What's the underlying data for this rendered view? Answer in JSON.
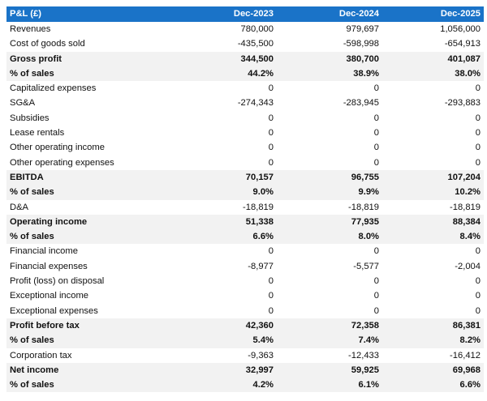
{
  "table": {
    "header": {
      "label": "P&L (£)",
      "years": [
        "Dec-2023",
        "Dec-2024",
        "Dec-2025"
      ]
    },
    "rows": [
      {
        "label": "Revenues",
        "values": [
          "780,000",
          "979,697",
          "1,056,000"
        ],
        "bold": false
      },
      {
        "label": "Cost of goods sold",
        "values": [
          "-435,500",
          "-598,998",
          "-654,913"
        ],
        "bold": false
      },
      {
        "label": "Gross profit",
        "values": [
          "344,500",
          "380,700",
          "401,087"
        ],
        "bold": true
      },
      {
        "label": "% of sales",
        "values": [
          "44.2%",
          "38.9%",
          "38.0%"
        ],
        "bold": true
      },
      {
        "label": "Capitalized expenses",
        "values": [
          "0",
          "0",
          "0"
        ],
        "bold": false
      },
      {
        "label": "SG&A",
        "values": [
          "-274,343",
          "-283,945",
          "-293,883"
        ],
        "bold": false
      },
      {
        "label": "Subsidies",
        "values": [
          "0",
          "0",
          "0"
        ],
        "bold": false
      },
      {
        "label": "Lease rentals",
        "values": [
          "0",
          "0",
          "0"
        ],
        "bold": false
      },
      {
        "label": "Other operating income",
        "values": [
          "0",
          "0",
          "0"
        ],
        "bold": false
      },
      {
        "label": "Other operating expenses",
        "values": [
          "0",
          "0",
          "0"
        ],
        "bold": false
      },
      {
        "label": "EBITDA",
        "values": [
          "70,157",
          "96,755",
          "107,204"
        ],
        "bold": true
      },
      {
        "label": "% of sales",
        "values": [
          "9.0%",
          "9.9%",
          "10.2%"
        ],
        "bold": true
      },
      {
        "label": "D&A",
        "values": [
          "-18,819",
          "-18,819",
          "-18,819"
        ],
        "bold": false
      },
      {
        "label": "Operating income",
        "values": [
          "51,338",
          "77,935",
          "88,384"
        ],
        "bold": true
      },
      {
        "label": "% of sales",
        "values": [
          "6.6%",
          "8.0%",
          "8.4%"
        ],
        "bold": true
      },
      {
        "label": "Financial income",
        "values": [
          "0",
          "0",
          "0"
        ],
        "bold": false
      },
      {
        "label": "Financial expenses",
        "values": [
          "-8,977",
          "-5,577",
          "-2,004"
        ],
        "bold": false
      },
      {
        "label": "Profit (loss) on disposal",
        "values": [
          "0",
          "0",
          "0"
        ],
        "bold": false
      },
      {
        "label": "Exceptional income",
        "values": [
          "0",
          "0",
          "0"
        ],
        "bold": false
      },
      {
        "label": "Exceptional expenses",
        "values": [
          "0",
          "0",
          "0"
        ],
        "bold": false
      },
      {
        "label": "Profit before tax",
        "values": [
          "42,360",
          "72,358",
          "86,381"
        ],
        "bold": true
      },
      {
        "label": "% of sales",
        "values": [
          "5.4%",
          "7.4%",
          "8.2%"
        ],
        "bold": true
      },
      {
        "label": "Corporation tax",
        "values": [
          "-9,363",
          "-12,433",
          "-16,412"
        ],
        "bold": false
      },
      {
        "label": "Net income",
        "values": [
          "32,997",
          "59,925",
          "69,968"
        ],
        "bold": true
      },
      {
        "label": "% of sales",
        "values": [
          "4.2%",
          "6.1%",
          "6.6%"
        ],
        "bold": true
      }
    ]
  },
  "colors": {
    "header_background": "#1a73c8",
    "header_text": "#ffffff",
    "bold_row_background": "#f2f2f2"
  }
}
